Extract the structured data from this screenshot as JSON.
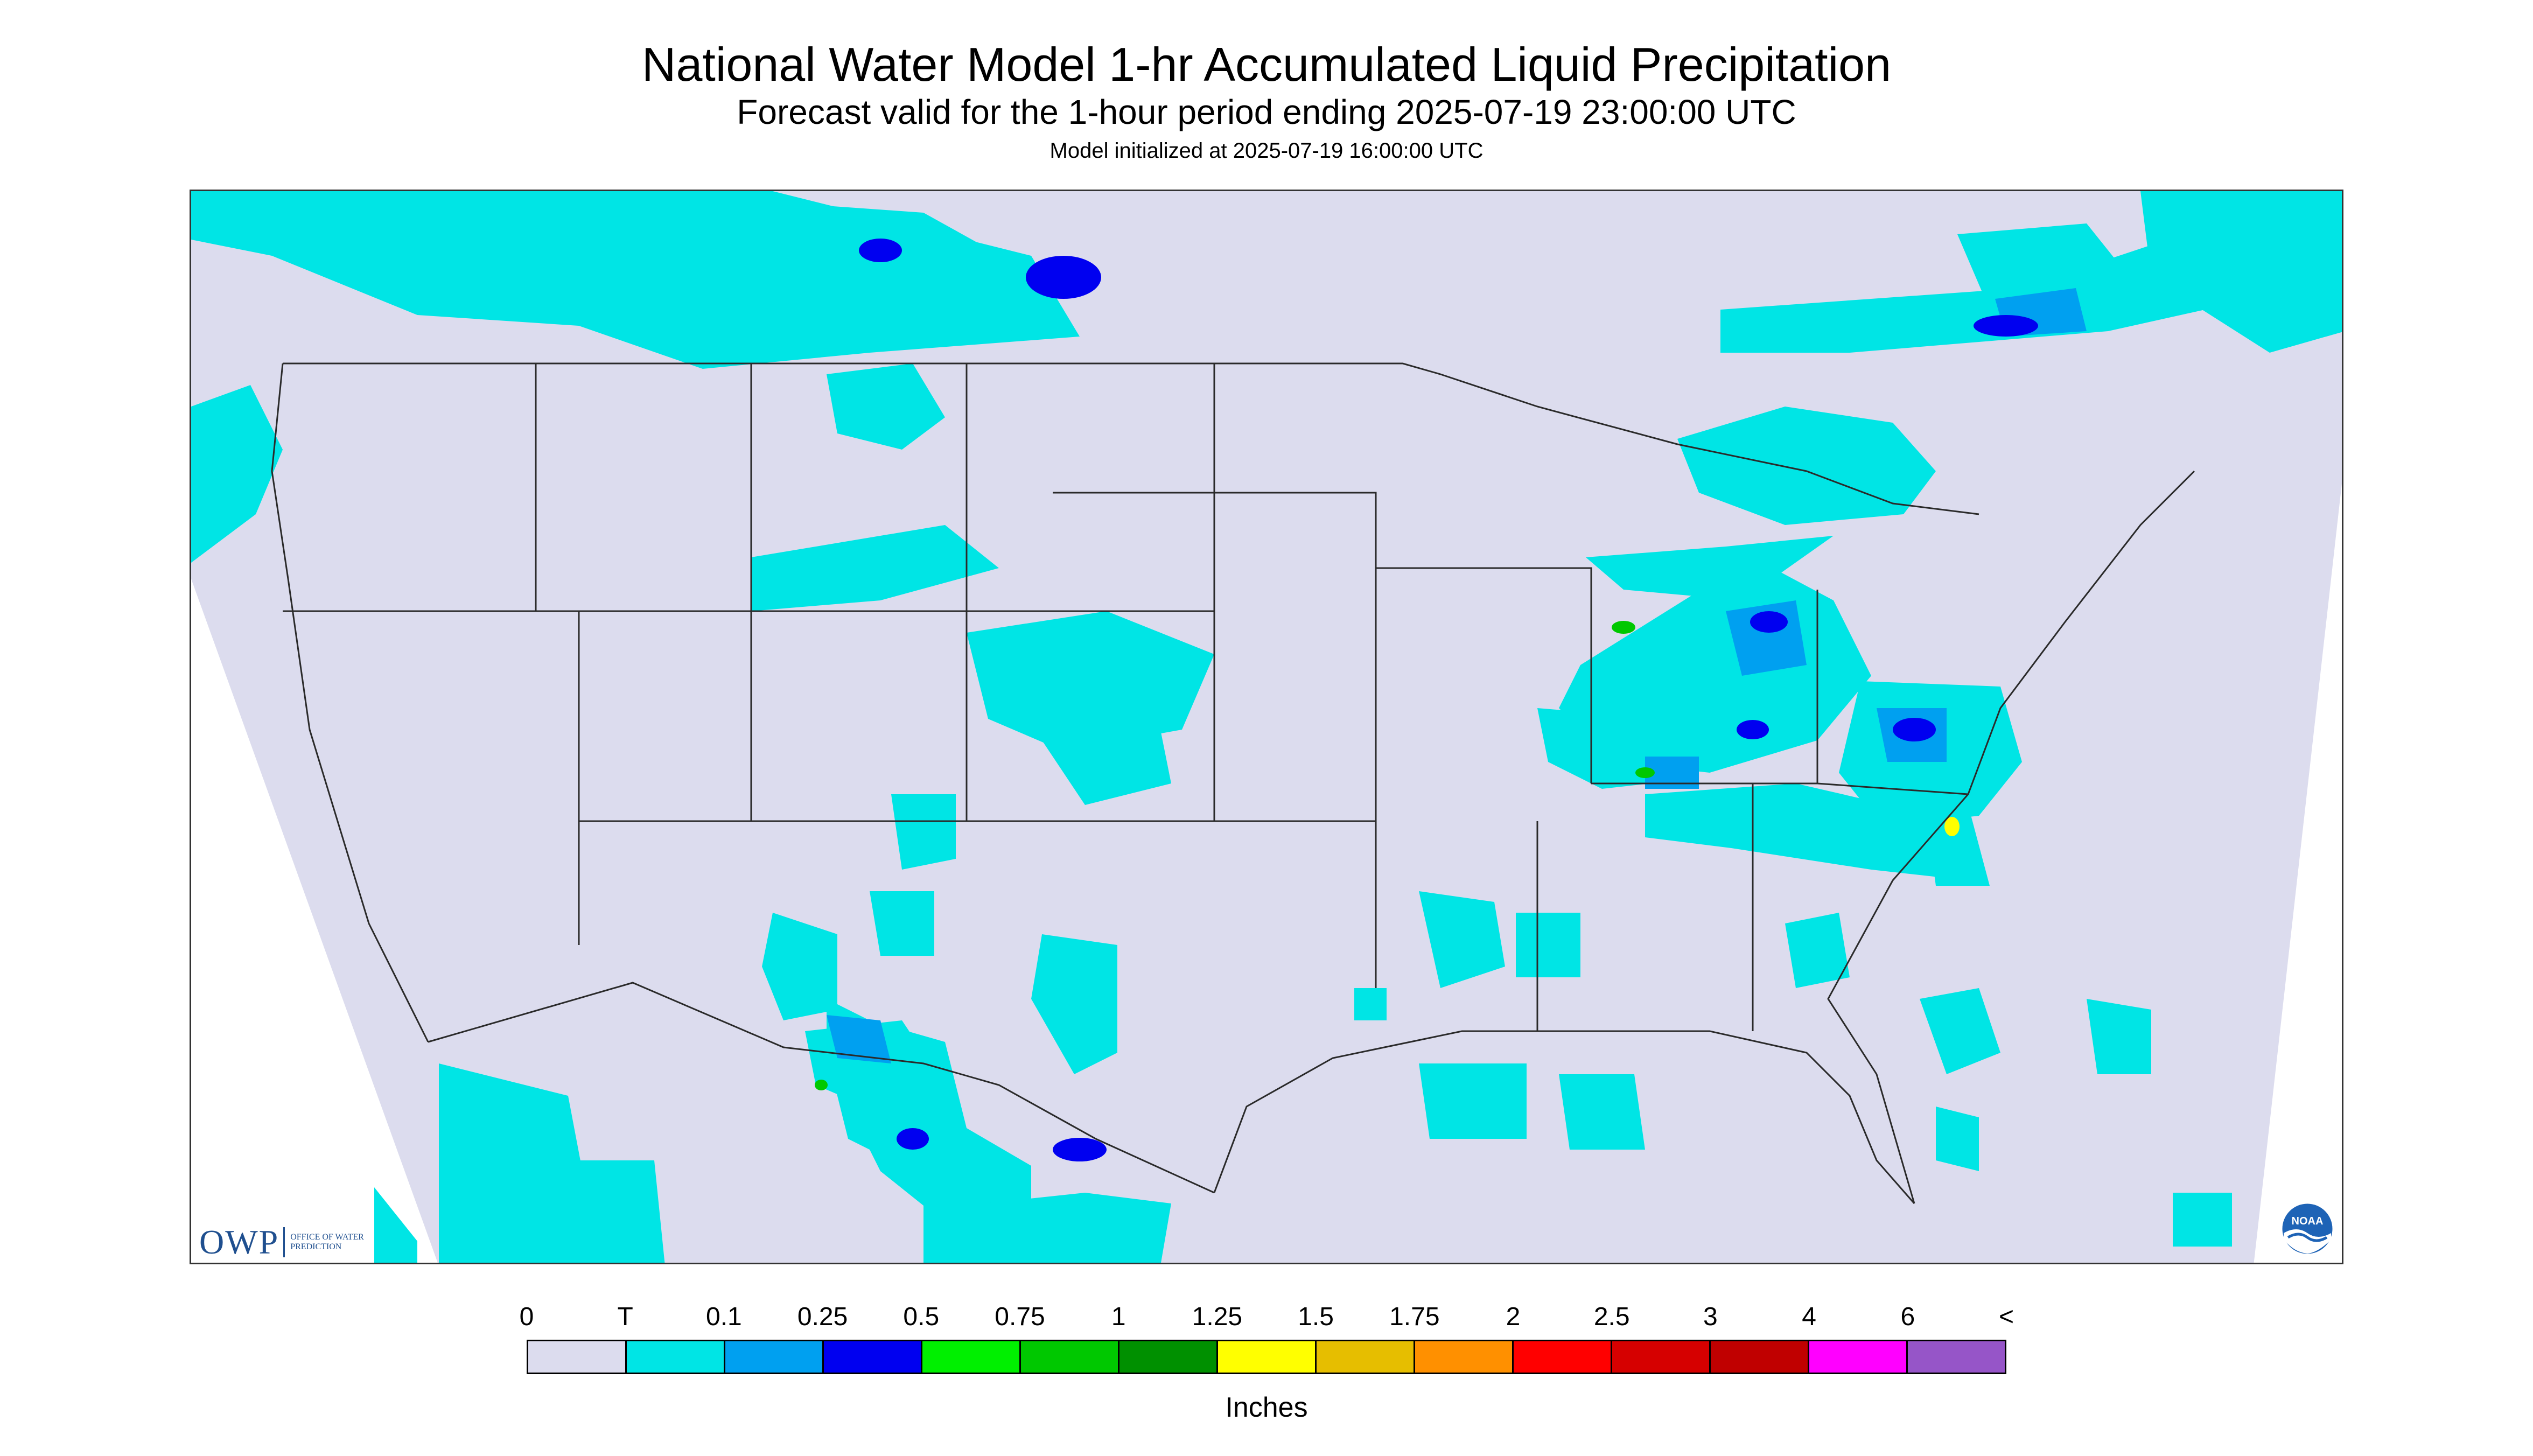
{
  "header": {
    "title": "National Water Model 1-hr Accumulated Liquid Precipitation",
    "subtitle": "Forecast valid for the 1-hour period ending 2025-07-19 23:00:00 UTC",
    "init_line": "Model initialized at 2025-07-19 16:00:00 UTC"
  },
  "legend": {
    "tick_labels": [
      "0",
      "T",
      "0.1",
      "0.25",
      "0.5",
      "0.75",
      "1",
      "1.25",
      "1.5",
      "1.75",
      "2",
      "2.5",
      "3",
      "4",
      "6",
      "<"
    ],
    "swatch_colors": [
      "#dcdcee",
      "#00e5e5",
      "#00a0f0",
      "#0000f0",
      "#00f000",
      "#00c800",
      "#009000",
      "#ffff00",
      "#e6be00",
      "#ff9000",
      "#ff0000",
      "#d60000",
      "#c00000",
      "#ff00ff",
      "#9655c8"
    ],
    "units": "Inches"
  },
  "colors": {
    "no_precip": "#dcdcee",
    "trace": "#00e5e5",
    "light": "#00a0f0",
    "moderate": "#0000f0",
    "heavy_green": "#00c800",
    "heavy_yellow": "#ffff00",
    "boundary": "#2a2a2a",
    "owp_blue": "#1f4f8f"
  },
  "logos": {
    "owp_mark": "OWP",
    "owp_text": "OFFICE OF WATER PREDICTION",
    "noaa_icon": "noaa-logo-icon",
    "noaa_text": "NOAA"
  }
}
